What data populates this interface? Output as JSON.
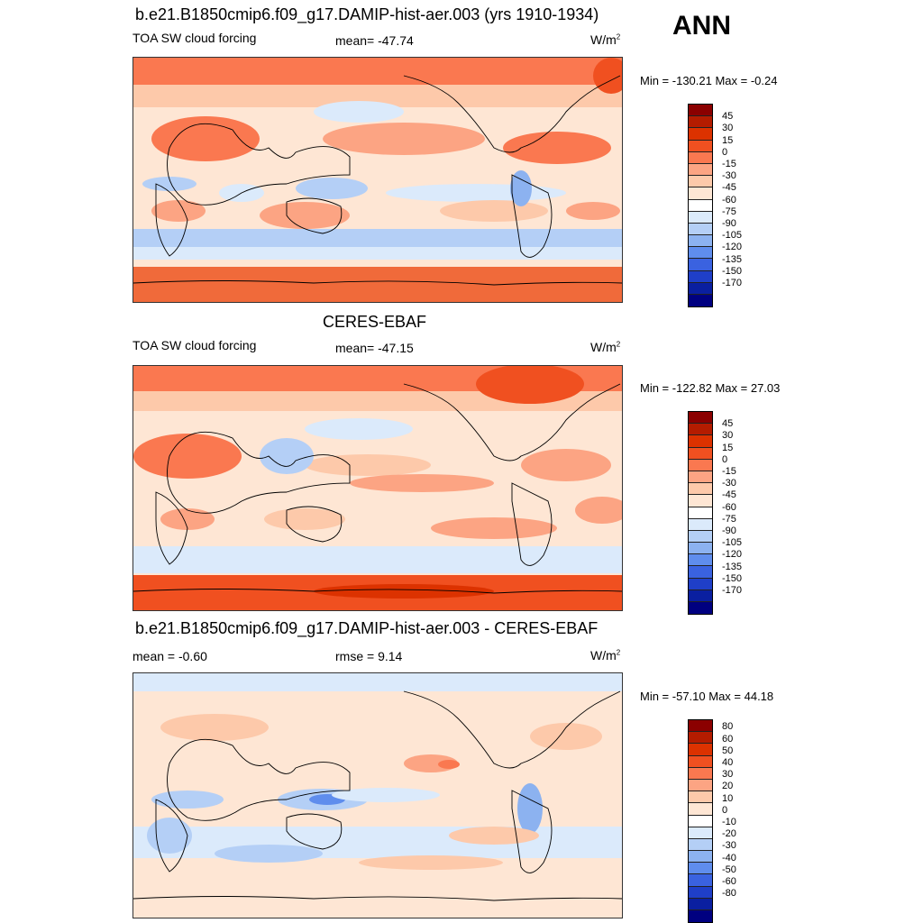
{
  "season": "ANN",
  "panels": [
    {
      "title": "b.e21.B1850cmip6.f09_g17.DAMIP-hist-aer.003 (yrs 1910-1934)",
      "left_label": "TOA SW cloud forcing",
      "center_label": "mean= -47.74",
      "units": "W/m",
      "units_sup": "2",
      "minmax": "Min = -130.21 Max =  -0.24"
    },
    {
      "title": "CERES-EBAF",
      "left_label": "TOA SW cloud forcing",
      "center_label": "mean= -47.15",
      "units": "W/m",
      "units_sup": "2",
      "minmax": "Min = -122.82 Max =  27.03"
    },
    {
      "title": "b.e21.B1850cmip6.f09_g17.DAMIP-hist-aer.003 - CERES-EBAF",
      "left_label": "mean =  -0.60",
      "center_label": "rmse =   9.14",
      "units": "W/m",
      "units_sup": "2",
      "minmax": "Min = -57.10 Max =  44.18"
    }
  ],
  "colorbars": {
    "abs": {
      "labels": [
        "45",
        "30",
        "15",
        "0",
        "-15",
        "-30",
        "-45",
        "-60",
        "-75",
        "-90",
        "-105",
        "-120",
        "-135",
        "-150",
        "-170"
      ],
      "colors": [
        "#8b0000",
        "#b41c00",
        "#dc3200",
        "#f05020",
        "#fa7850",
        "#fca483",
        "#fdc9aa",
        "#fee6d4",
        "#ffffff",
        "#dbeafb",
        "#b4cff6",
        "#8cb2f0",
        "#5f8ded",
        "#3a62e0",
        "#1f3fc8",
        "#0a1fa0",
        "#000080"
      ]
    },
    "diff": {
      "labels": [
        "80",
        "60",
        "50",
        "40",
        "30",
        "20",
        "10",
        "0",
        "-10",
        "-20",
        "-30",
        "-40",
        "-50",
        "-60",
        "-80"
      ],
      "colors": [
        "#8b0000",
        "#b41c00",
        "#dc3200",
        "#f05020",
        "#fa7850",
        "#fca483",
        "#fdc9aa",
        "#fee6d4",
        "#ffffff",
        "#dbeafb",
        "#b4cff6",
        "#8cb2f0",
        "#5f8ded",
        "#3a62e0",
        "#1f3fc8",
        "#0a1fa0",
        "#000080"
      ]
    }
  }
}
